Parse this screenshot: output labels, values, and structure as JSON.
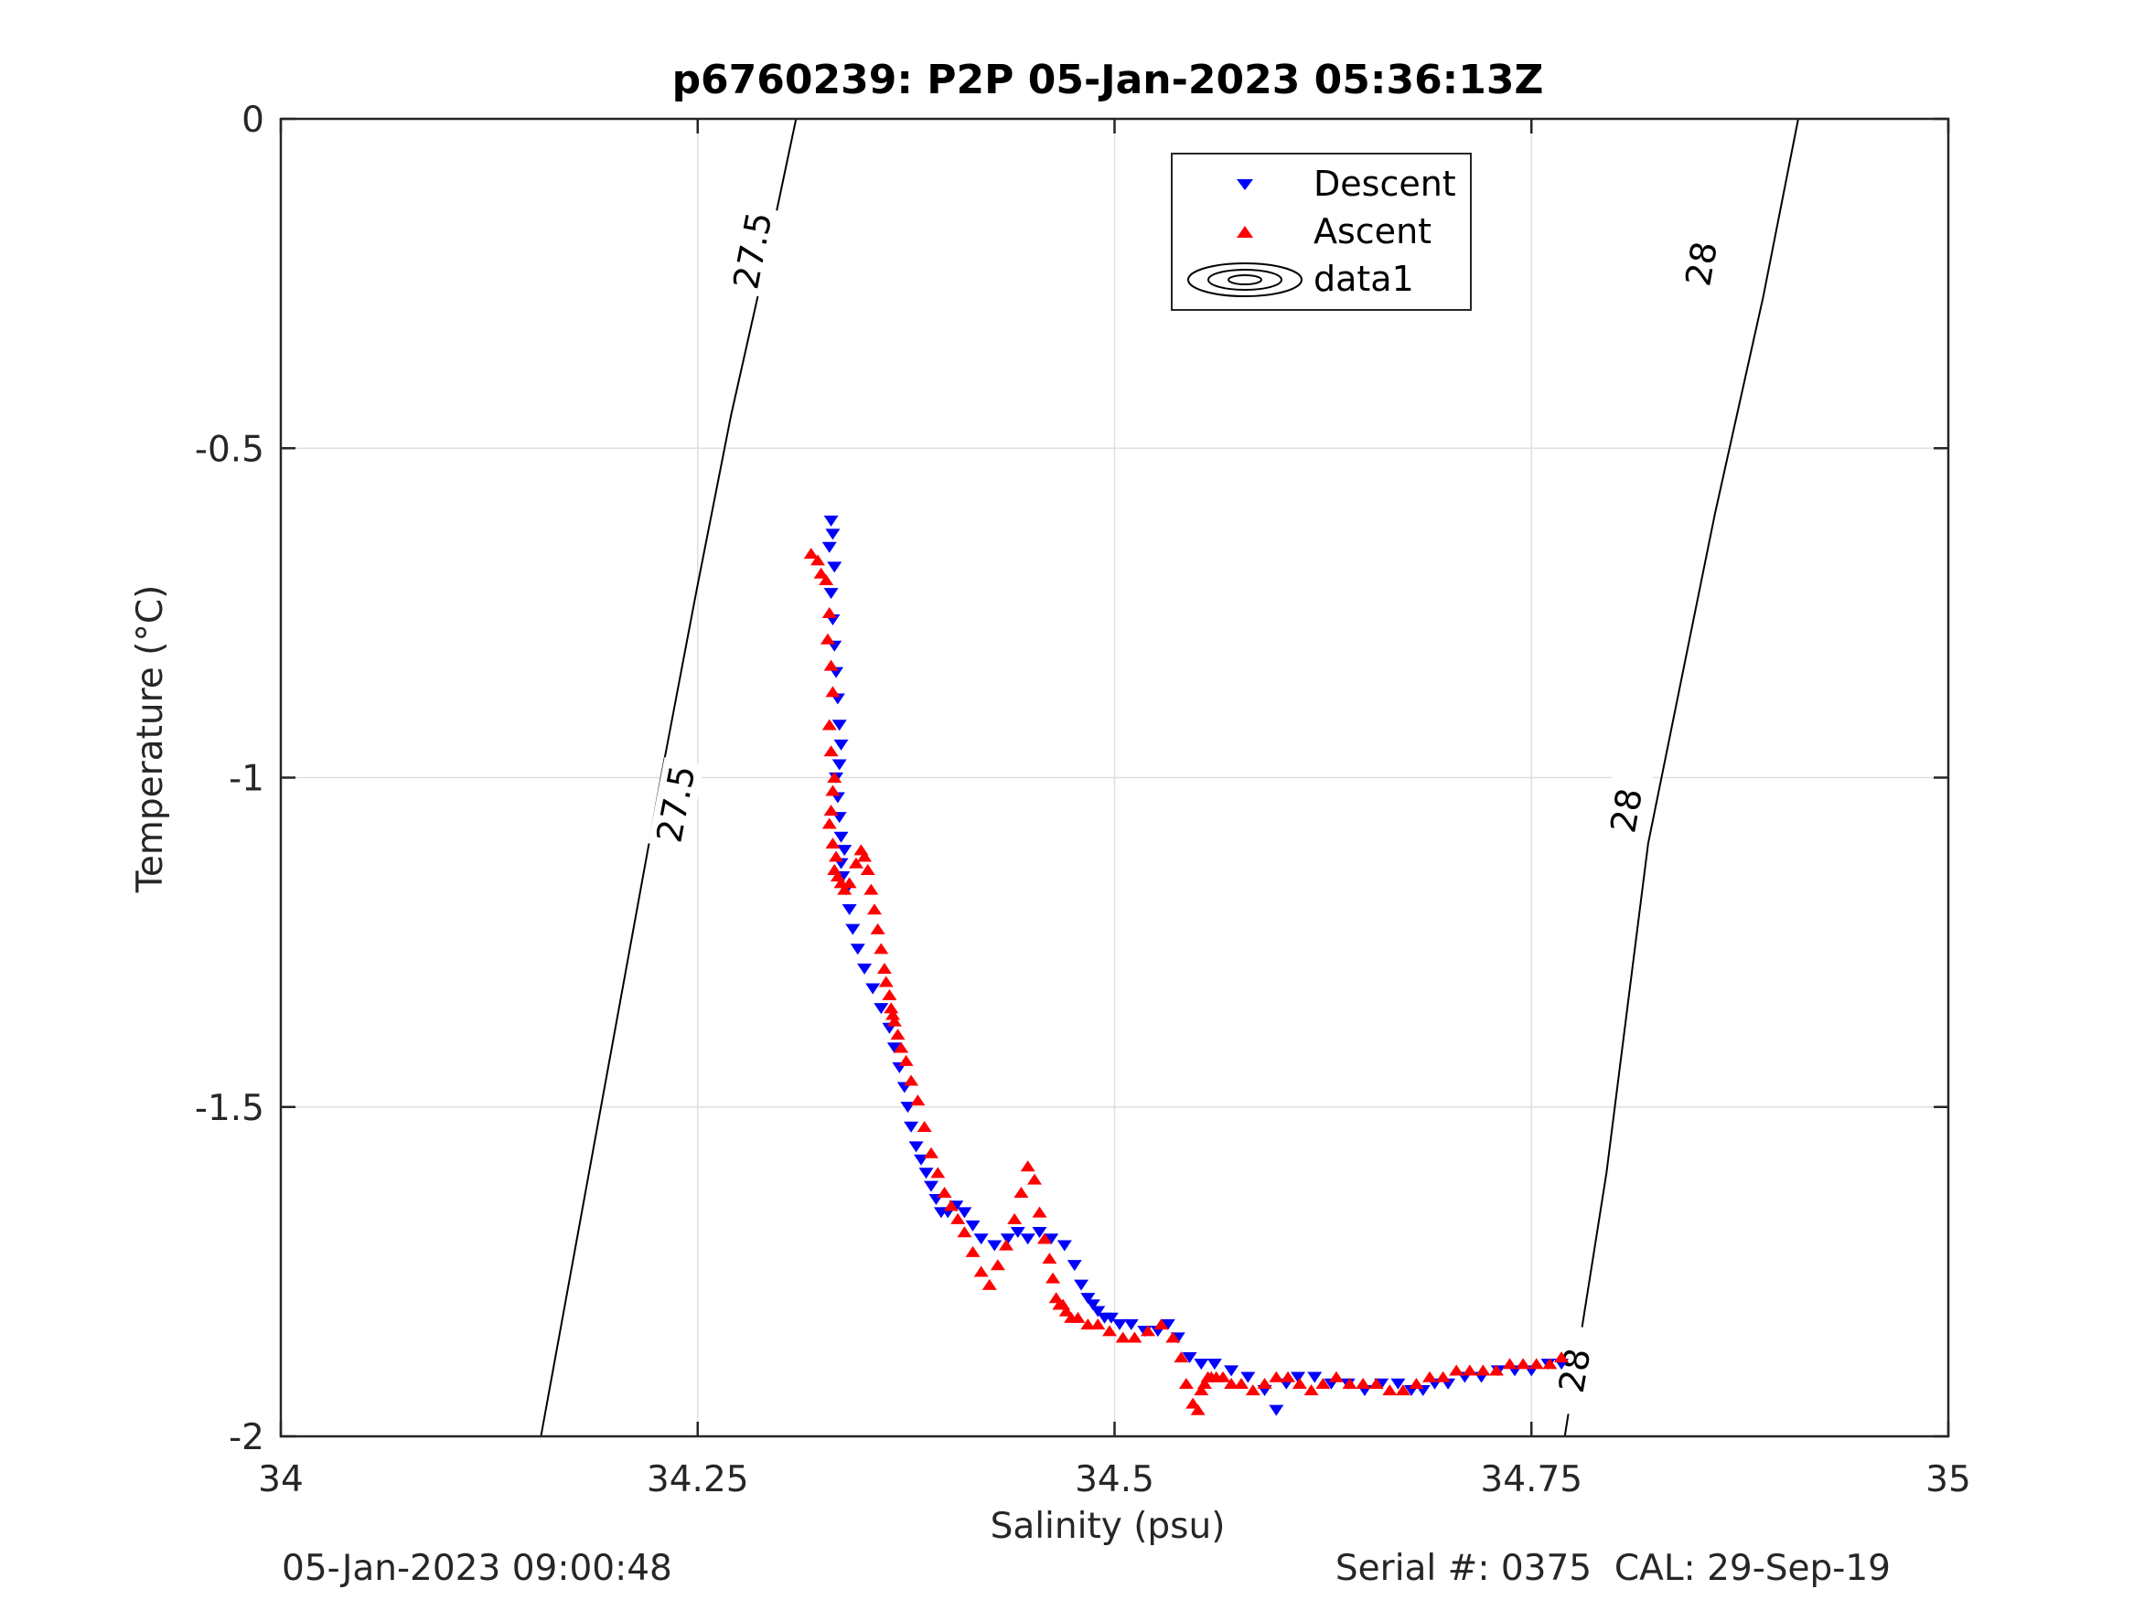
{
  "chart_data": {
    "type": "scatter",
    "title": "p6760239: P2P 05-Jan-2023 05:36:13Z",
    "xlabel": "Salinity (psu)",
    "ylabel": "Temperature (°C)",
    "xlim": [
      34,
      35
    ],
    "ylim": [
      -2,
      0
    ],
    "xticks": [
      34,
      34.25,
      34.5,
      34.75,
      35
    ],
    "xtick_labels": [
      "34",
      "34.25",
      "34.5",
      "34.75",
      "35"
    ],
    "yticks": [
      0,
      -0.5,
      -1,
      -1.5,
      -2
    ],
    "ytick_labels": [
      "0",
      "-0.5",
      "-1",
      "-1.5",
      "-2"
    ],
    "grid": true,
    "legend_position": "top-center",
    "legend": [
      "Descent",
      "Ascent",
      "data1"
    ],
    "contour_levels": [
      {
        "label": "27.5",
        "points": [
          [
            34.156,
            -2
          ],
          [
            34.228,
            -1.0
          ],
          [
            34.249,
            -0.72
          ],
          [
            34.27,
            -0.45
          ],
          [
            34.294,
            -0.18
          ],
          [
            34.309,
            0
          ]
        ]
      },
      {
        "label": "28",
        "points": [
          [
            34.77,
            -2
          ],
          [
            34.795,
            -1.6
          ],
          [
            34.82,
            -1.1
          ],
          [
            34.86,
            -0.6
          ],
          [
            34.889,
            -0.27
          ],
          [
            34.91,
            0
          ]
        ]
      }
    ],
    "contour_label_marks": [
      {
        "text": "27.5",
        "x": 34.237,
        "y": -1.04
      },
      {
        "text": "27.5",
        "x": 34.283,
        "y": -0.2
      },
      {
        "text": "28",
        "x": 34.807,
        "y": -1.05
      },
      {
        "text": "28",
        "x": 34.852,
        "y": -0.22
      },
      {
        "text": "28",
        "x": 34.776,
        "y": -1.9
      }
    ],
    "series": [
      {
        "name": "Descent",
        "marker": "triangle-down",
        "color": "#0000ff",
        "x": [
          34.33,
          34.331,
          34.329,
          34.332,
          34.33,
          34.331,
          34.332,
          34.333,
          34.334,
          34.335,
          34.336,
          34.335,
          34.333,
          34.334,
          34.335,
          34.336,
          34.338,
          34.336,
          34.337,
          34.339,
          34.341,
          34.343,
          34.346,
          34.35,
          34.355,
          34.36,
          34.365,
          34.368,
          34.371,
          34.374,
          34.376,
          34.378,
          34.381,
          34.384,
          34.387,
          34.39,
          34.393,
          34.396,
          34.4,
          34.405,
          34.41,
          34.415,
          34.42,
          34.428,
          34.436,
          34.442,
          34.448,
          34.455,
          34.462,
          34.47,
          34.476,
          34.48,
          34.484,
          34.487,
          34.49,
          34.494,
          34.498,
          34.503,
          34.51,
          34.518,
          34.526,
          34.532,
          34.538,
          34.545,
          34.552,
          34.56,
          34.57,
          34.58,
          34.59,
          34.597,
          34.603,
          34.61,
          34.62,
          34.63,
          34.64,
          34.65,
          34.66,
          34.67,
          34.678,
          34.685,
          34.692,
          34.7,
          34.71,
          34.72,
          34.73,
          34.74,
          34.75,
          34.76,
          34.768
        ],
        "y": [
          -0.61,
          -0.63,
          -0.65,
          -0.68,
          -0.72,
          -0.76,
          -0.8,
          -0.84,
          -0.88,
          -0.92,
          -0.95,
          -0.98,
          -1.0,
          -1.03,
          -1.06,
          -1.09,
          -1.11,
          -1.13,
          -1.15,
          -1.17,
          -1.2,
          -1.23,
          -1.26,
          -1.29,
          -1.32,
          -1.35,
          -1.38,
          -1.41,
          -1.44,
          -1.47,
          -1.5,
          -1.53,
          -1.56,
          -1.58,
          -1.6,
          -1.62,
          -1.64,
          -1.66,
          -1.66,
          -1.65,
          -1.66,
          -1.68,
          -1.7,
          -1.71,
          -1.7,
          -1.69,
          -1.7,
          -1.69,
          -1.7,
          -1.71,
          -1.74,
          -1.77,
          -1.79,
          -1.8,
          -1.81,
          -1.82,
          -1.82,
          -1.83,
          -1.83,
          -1.84,
          -1.84,
          -1.83,
          -1.85,
          -1.88,
          -1.89,
          -1.89,
          -1.9,
          -1.91,
          -1.93,
          -1.96,
          -1.92,
          -1.91,
          -1.91,
          -1.92,
          -1.92,
          -1.93,
          -1.92,
          -1.92,
          -1.93,
          -1.93,
          -1.92,
          -1.92,
          -1.91,
          -1.91,
          -1.9,
          -1.9,
          -1.9,
          -1.89,
          -1.89
        ]
      },
      {
        "name": "Ascent",
        "marker": "triangle-up",
        "color": "#ff0000",
        "x": [
          34.318,
          34.322,
          34.324,
          34.327,
          34.329,
          34.328,
          34.33,
          34.331,
          34.329,
          34.33,
          34.332,
          34.331,
          34.33,
          34.329,
          34.331,
          34.333,
          34.332,
          34.334,
          34.336,
          34.338,
          34.341,
          34.345,
          34.348,
          34.35,
          34.352,
          34.354,
          34.356,
          34.358,
          34.36,
          34.362,
          34.363,
          34.365,
          34.366,
          34.367,
          34.368,
          34.37,
          34.372,
          34.375,
          34.378,
          34.382,
          34.386,
          34.39,
          34.394,
          34.398,
          34.402,
          34.406,
          34.41,
          34.415,
          34.42,
          34.425,
          34.43,
          34.435,
          34.44,
          34.444,
          34.448,
          34.452,
          34.455,
          34.458,
          34.461,
          34.463,
          34.465,
          34.467,
          34.469,
          34.471,
          34.474,
          34.478,
          34.484,
          34.49,
          34.497,
          34.505,
          34.512,
          34.52,
          34.528,
          34.535,
          34.54,
          34.543,
          34.547,
          34.55,
          34.552,
          34.554,
          34.556,
          34.558,
          34.561,
          34.565,
          34.57,
          34.576,
          34.583,
          34.59,
          34.597,
          34.604,
          34.611,
          34.618,
          34.625,
          34.633,
          34.641,
          34.649,
          34.657,
          34.665,
          34.673,
          34.681,
          34.689,
          34.697,
          34.705,
          34.713,
          34.721,
          34.729,
          34.737,
          34.745,
          34.753,
          34.761,
          34.768
        ],
        "y": [
          -0.66,
          -0.67,
          -0.69,
          -0.7,
          -0.75,
          -0.79,
          -0.83,
          -0.87,
          -0.92,
          -0.96,
          -1.0,
          -1.02,
          -1.05,
          -1.07,
          -1.1,
          -1.12,
          -1.14,
          -1.15,
          -1.16,
          -1.17,
          -1.16,
          -1.13,
          -1.11,
          -1.12,
          -1.14,
          -1.17,
          -1.2,
          -1.23,
          -1.26,
          -1.29,
          -1.31,
          -1.33,
          -1.35,
          -1.36,
          -1.37,
          -1.39,
          -1.41,
          -1.43,
          -1.46,
          -1.49,
          -1.53,
          -1.57,
          -1.6,
          -1.63,
          -1.65,
          -1.67,
          -1.69,
          -1.72,
          -1.75,
          -1.77,
          -1.74,
          -1.71,
          -1.67,
          -1.63,
          -1.59,
          -1.61,
          -1.66,
          -1.7,
          -1.73,
          -1.76,
          -1.79,
          -1.8,
          -1.8,
          -1.81,
          -1.82,
          -1.82,
          -1.83,
          -1.83,
          -1.84,
          -1.85,
          -1.85,
          -1.84,
          -1.83,
          -1.85,
          -1.88,
          -1.92,
          -1.95,
          -1.96,
          -1.93,
          -1.92,
          -1.91,
          -1.91,
          -1.91,
          -1.91,
          -1.92,
          -1.92,
          -1.93,
          -1.92,
          -1.91,
          -1.91,
          -1.92,
          -1.93,
          -1.92,
          -1.91,
          -1.92,
          -1.92,
          -1.92,
          -1.93,
          -1.93,
          -1.92,
          -1.91,
          -1.91,
          -1.9,
          -1.9,
          -1.9,
          -1.9,
          -1.89,
          -1.89,
          -1.89,
          -1.89,
          -1.88
        ]
      }
    ]
  },
  "footer": {
    "left": "05-Jan-2023 09:00:48",
    "right": "Serial #: 0375  CAL: 29-Sep-19"
  }
}
